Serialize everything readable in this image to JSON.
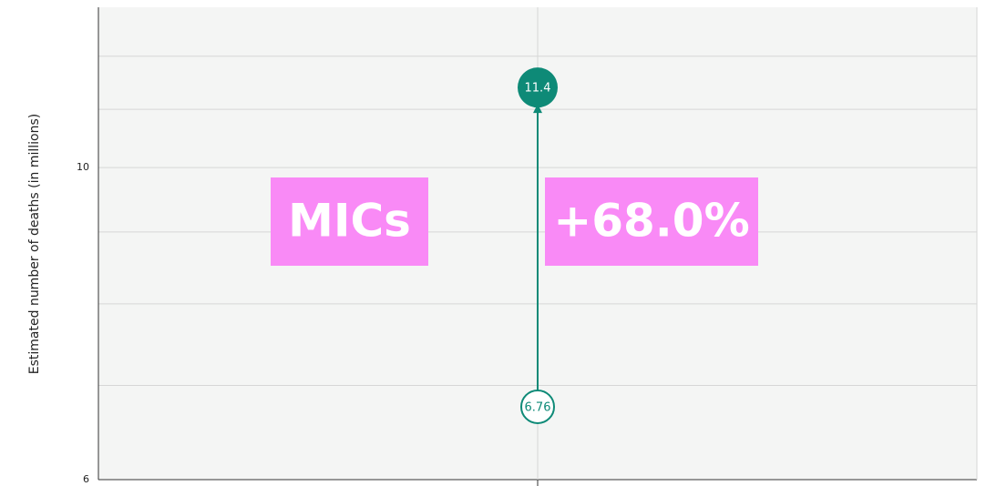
{
  "chart_data": {
    "type": "dumbbell",
    "y_label": "Estimated number of deaths (in millions)",
    "categories": [
      null
    ],
    "start": [
      6.76
    ],
    "end": [
      11.4
    ],
    "color": "#0e8a77",
    "log_y": true,
    "ylim": [
      6,
      13
    ],
    "yticks": [
      6,
      10
    ],
    "minor_yticks": [
      7,
      8,
      9,
      11,
      12
    ],
    "grid": true,
    "annotations": [
      "MICs",
      "+68.0%"
    ],
    "annotation_color": "#f98af6"
  }
}
